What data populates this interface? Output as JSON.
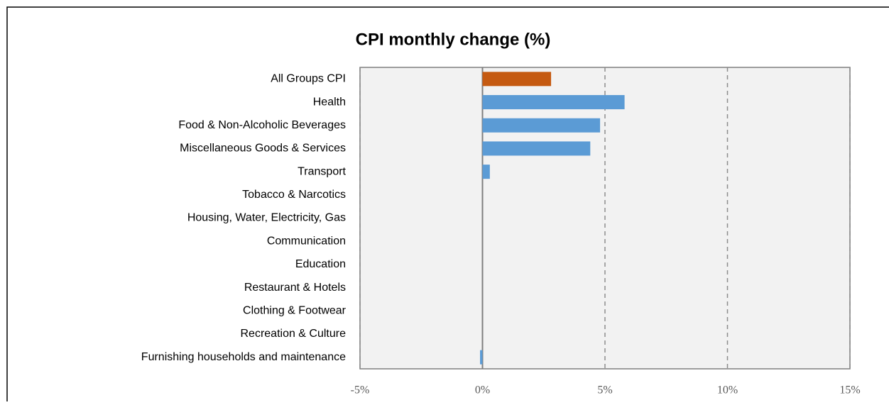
{
  "chart_data": {
    "type": "bar",
    "orientation": "horizontal",
    "title": "CPI monthly change (%)",
    "categories": [
      "All Groups CPI",
      "Health",
      "Food & Non-Alcoholic Beverages",
      "Miscellaneous Goods & Services",
      "Transport",
      "Tobacco & Narcotics",
      "Housing, Water, Electricity, Gas",
      "Communication",
      "Education",
      "Restaurant & Hotels",
      "Clothing & Footwear",
      "Recreation & Culture",
      "Furnishing households and maintenance"
    ],
    "values": [
      2.8,
      5.8,
      4.8,
      4.4,
      0.3,
      0,
      0,
      0,
      0,
      0,
      0,
      0,
      -0.1
    ],
    "colors": [
      "#c55a11",
      "#5b9bd5",
      "#5b9bd5",
      "#5b9bd5",
      "#5b9bd5",
      "#5b9bd5",
      "#5b9bd5",
      "#5b9bd5",
      "#5b9bd5",
      "#5b9bd5",
      "#5b9bd5",
      "#5b9bd5",
      "#5b9bd5"
    ],
    "xlim": [
      -5,
      15
    ],
    "xticks": [
      {
        "value": -5,
        "label": "-5%"
      },
      {
        "value": 0,
        "label": "0%"
      },
      {
        "value": 5,
        "label": "5%"
      },
      {
        "value": 10,
        "label": "10%"
      },
      {
        "value": 15,
        "label": "15%"
      }
    ],
    "grid": true
  }
}
